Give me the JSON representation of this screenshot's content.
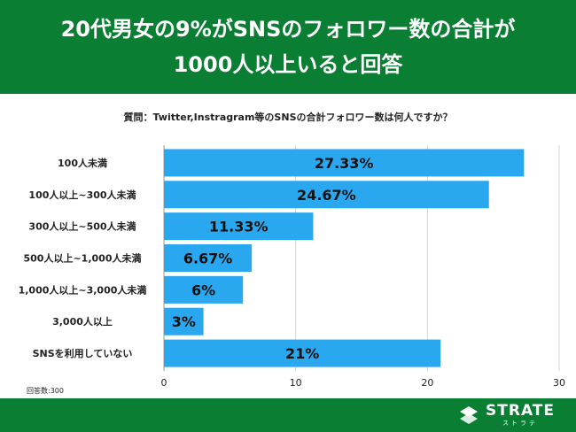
{
  "header": {
    "title_line1": "20代男女の9%がSNSのフォロワー数の合計が",
    "title_line2": "1000人以上いると回答",
    "bg_color": "#0a7e32"
  },
  "question": "質問：Twitter,Instragram等のSNSの合計フォロワー数は何人ですか？",
  "footnote": "回答数:300",
  "logo": {
    "word": "STRATE",
    "sub": "ストラテ"
  },
  "chart_data": {
    "type": "bar",
    "orientation": "horizontal",
    "categories": [
      "100人未満",
      "100人以上~300人未満",
      "300人以上~500人未満",
      "500人以上~1,000人未満",
      "1,000人以上~3,000人未満",
      "3,000人以上",
      "SNSを利用していない"
    ],
    "values": [
      27.33,
      24.67,
      11.33,
      6.67,
      6,
      3,
      21
    ],
    "value_labels": [
      "27.33%",
      "24.67%",
      "11.33%",
      "6.67%",
      "6%",
      "3%",
      "21%"
    ],
    "xlim": [
      0,
      30
    ],
    "xticks": [
      0,
      10,
      20,
      30
    ],
    "grid": true,
    "bar_color": "#29a8ef",
    "title": "",
    "xlabel": "",
    "ylabel": ""
  }
}
